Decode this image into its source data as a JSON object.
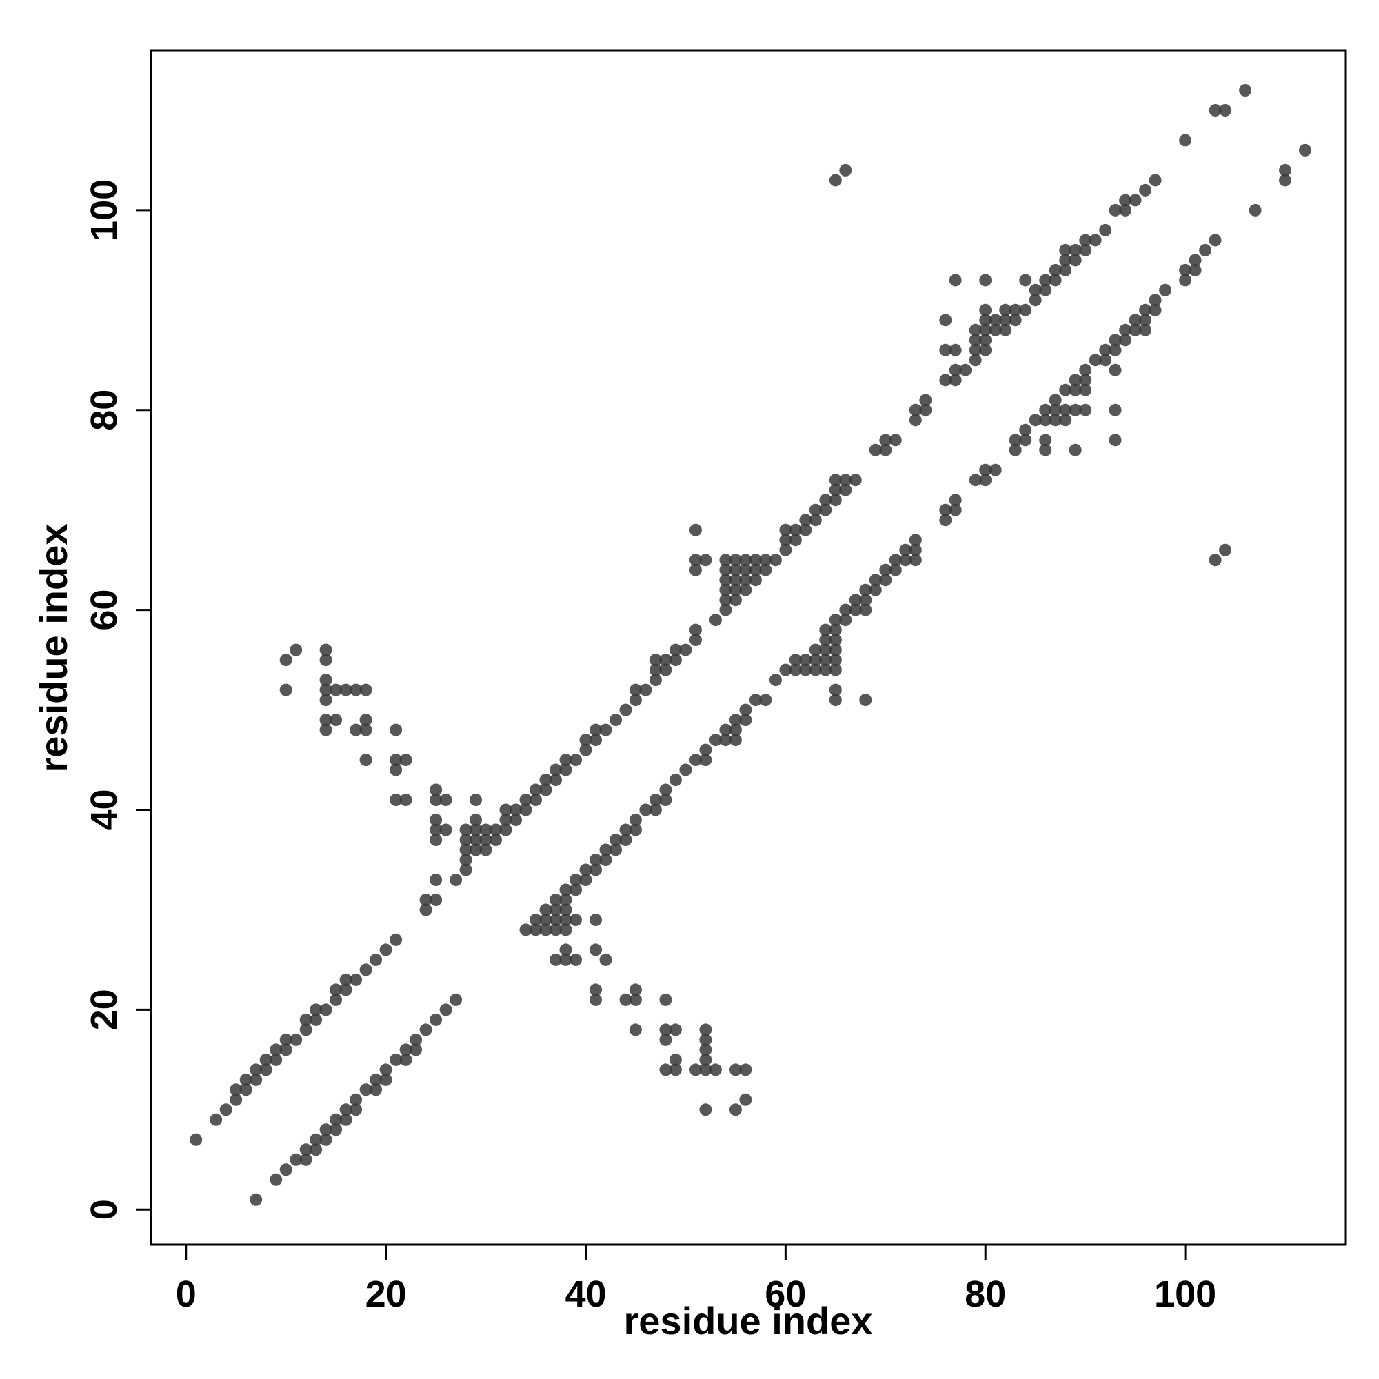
{
  "chart_data": {
    "type": "scatter",
    "title": "",
    "xlabel": "residue index",
    "ylabel": "residue index",
    "xlim": [
      -3.5,
      116
    ],
    "ylim": [
      -3.5,
      116
    ],
    "xticks": [
      0,
      20,
      40,
      60,
      80,
      100
    ],
    "yticks": [
      0,
      20,
      40,
      60,
      80,
      100
    ],
    "grid": false,
    "legend": "none",
    "point_color": "#3a3a3a",
    "point_opacity": 0.85,
    "points": [
      [
        1,
        7
      ],
      [
        3,
        9
      ],
      [
        4,
        10
      ],
      [
        5,
        11
      ],
      [
        5,
        12
      ],
      [
        6,
        12
      ],
      [
        6,
        13
      ],
      [
        7,
        13
      ],
      [
        7,
        14
      ],
      [
        8,
        14
      ],
      [
        8,
        15
      ],
      [
        9,
        15
      ],
      [
        9,
        16
      ],
      [
        10,
        16
      ],
      [
        10,
        17
      ],
      [
        11,
        17
      ],
      [
        12,
        18
      ],
      [
        12,
        19
      ],
      [
        13,
        19
      ],
      [
        13,
        20
      ],
      [
        14,
        20
      ],
      [
        15,
        21
      ],
      [
        15,
        22
      ],
      [
        16,
        22
      ],
      [
        16,
        23
      ],
      [
        17,
        23
      ],
      [
        18,
        24
      ],
      [
        19,
        25
      ],
      [
        20,
        26
      ],
      [
        21,
        27
      ],
      [
        22,
        15
      ],
      [
        23,
        16
      ],
      [
        23,
        17
      ],
      [
        24,
        18
      ],
      [
        25,
        19
      ],
      [
        26,
        20
      ],
      [
        27,
        21
      ],
      [
        7,
        1
      ],
      [
        9,
        3
      ],
      [
        10,
        4
      ],
      [
        11,
        5
      ],
      [
        12,
        5
      ],
      [
        12,
        6
      ],
      [
        13,
        6
      ],
      [
        13,
        7
      ],
      [
        14,
        7
      ],
      [
        14,
        8
      ],
      [
        15,
        8
      ],
      [
        15,
        9
      ],
      [
        16,
        9
      ],
      [
        16,
        10
      ],
      [
        17,
        10
      ],
      [
        17,
        11
      ],
      [
        18,
        12
      ],
      [
        19,
        12
      ],
      [
        19,
        13
      ],
      [
        20,
        13
      ],
      [
        20,
        14
      ],
      [
        21,
        15
      ],
      [
        22,
        16
      ],
      [
        10,
        52
      ],
      [
        10,
        55
      ],
      [
        11,
        56
      ],
      [
        14,
        56
      ],
      [
        14,
        55
      ],
      [
        14,
        53
      ],
      [
        14,
        52
      ],
      [
        14,
        51
      ],
      [
        14,
        49
      ],
      [
        14,
        48
      ],
      [
        15,
        52
      ],
      [
        15,
        49
      ],
      [
        16,
        52
      ],
      [
        17,
        52
      ],
      [
        17,
        48
      ],
      [
        18,
        52
      ],
      [
        18,
        49
      ],
      [
        18,
        48
      ],
      [
        18,
        45
      ],
      [
        21,
        48
      ],
      [
        21,
        45
      ],
      [
        21,
        44
      ],
      [
        21,
        41
      ],
      [
        22,
        45
      ],
      [
        22,
        41
      ],
      [
        24,
        30
      ],
      [
        24,
        31
      ],
      [
        25,
        31
      ],
      [
        25,
        33
      ],
      [
        25,
        37
      ],
      [
        25,
        38
      ],
      [
        25,
        39
      ],
      [
        25,
        41
      ],
      [
        25,
        42
      ],
      [
        26,
        38
      ],
      [
        26,
        41
      ],
      [
        27,
        33
      ],
      [
        28,
        34
      ],
      [
        28,
        35
      ],
      [
        28,
        36
      ],
      [
        28,
        37
      ],
      [
        28,
        38
      ],
      [
        29,
        36
      ],
      [
        29,
        37
      ],
      [
        29,
        38
      ],
      [
        29,
        39
      ],
      [
        29,
        41
      ],
      [
        30,
        36
      ],
      [
        30,
        37
      ],
      [
        30,
        38
      ],
      [
        31,
        37
      ],
      [
        31,
        38
      ],
      [
        32,
        38
      ],
      [
        32,
        39
      ],
      [
        32,
        40
      ],
      [
        33,
        39
      ],
      [
        33,
        40
      ],
      [
        34,
        40
      ],
      [
        34,
        41
      ],
      [
        35,
        41
      ],
      [
        35,
        42
      ],
      [
        36,
        42
      ],
      [
        36,
        43
      ],
      [
        37,
        43
      ],
      [
        37,
        44
      ],
      [
        38,
        44
      ],
      [
        38,
        45
      ],
      [
        39,
        45
      ],
      [
        40,
        46
      ],
      [
        40,
        47
      ],
      [
        41,
        47
      ],
      [
        41,
        48
      ],
      [
        42,
        48
      ],
      [
        43,
        49
      ],
      [
        44,
        50
      ],
      [
        45,
        51
      ],
      [
        45,
        52
      ],
      [
        46,
        52
      ],
      [
        47,
        53
      ],
      [
        47,
        54
      ],
      [
        47,
        55
      ],
      [
        48,
        54
      ],
      [
        48,
        55
      ],
      [
        49,
        55
      ],
      [
        49,
        56
      ],
      [
        50,
        56
      ],
      [
        51,
        57
      ],
      [
        51,
        58
      ],
      [
        51,
        64
      ],
      [
        51,
        65
      ],
      [
        51,
        68
      ],
      [
        52,
        65
      ],
      [
        53,
        59
      ],
      [
        54,
        60
      ],
      [
        54,
        61
      ],
      [
        54,
        62
      ],
      [
        54,
        63
      ],
      [
        54,
        64
      ],
      [
        54,
        65
      ],
      [
        55,
        61
      ],
      [
        55,
        62
      ],
      [
        55,
        63
      ],
      [
        55,
        64
      ],
      [
        55,
        65
      ],
      [
        56,
        62
      ],
      [
        56,
        63
      ],
      [
        56,
        64
      ],
      [
        56,
        65
      ],
      [
        57,
        63
      ],
      [
        57,
        64
      ],
      [
        57,
        65
      ],
      [
        58,
        64
      ],
      [
        58,
        65
      ],
      [
        59,
        65
      ],
      [
        60,
        66
      ],
      [
        60,
        67
      ],
      [
        60,
        68
      ],
      [
        61,
        67
      ],
      [
        61,
        68
      ],
      [
        62,
        68
      ],
      [
        62,
        69
      ],
      [
        63,
        69
      ],
      [
        63,
        70
      ],
      [
        64,
        70
      ],
      [
        64,
        71
      ],
      [
        65,
        71
      ],
      [
        65,
        72
      ],
      [
        65,
        73
      ],
      [
        66,
        72
      ],
      [
        66,
        73
      ],
      [
        67,
        73
      ],
      [
        65,
        103
      ],
      [
        66,
        104
      ],
      [
        69,
        76
      ],
      [
        70,
        76
      ],
      [
        70,
        77
      ],
      [
        71,
        77
      ],
      [
        73,
        79
      ],
      [
        73,
        80
      ],
      [
        74,
        80
      ],
      [
        74,
        81
      ],
      [
        76,
        83
      ],
      [
        76,
        86
      ],
      [
        76,
        89
      ],
      [
        77,
        83
      ],
      [
        77,
        84
      ],
      [
        77,
        86
      ],
      [
        77,
        93
      ],
      [
        78,
        84
      ],
      [
        79,
        85
      ],
      [
        79,
        86
      ],
      [
        79,
        87
      ],
      [
        79,
        88
      ],
      [
        80,
        86
      ],
      [
        80,
        87
      ],
      [
        80,
        88
      ],
      [
        80,
        89
      ],
      [
        80,
        90
      ],
      [
        80,
        93
      ],
      [
        81,
        88
      ],
      [
        81,
        89
      ],
      [
        82,
        88
      ],
      [
        82,
        89
      ],
      [
        82,
        90
      ],
      [
        83,
        89
      ],
      [
        83,
        90
      ],
      [
        84,
        90
      ],
      [
        84,
        93
      ],
      [
        85,
        91
      ],
      [
        85,
        92
      ],
      [
        86,
        92
      ],
      [
        86,
        93
      ],
      [
        87,
        93
      ],
      [
        87,
        94
      ],
      [
        88,
        94
      ],
      [
        88,
        95
      ],
      [
        88,
        96
      ],
      [
        89,
        95
      ],
      [
        89,
        96
      ],
      [
        90,
        96
      ],
      [
        90,
        97
      ],
      [
        91,
        97
      ],
      [
        92,
        98
      ],
      [
        93,
        100
      ],
      [
        94,
        100
      ],
      [
        94,
        101
      ],
      [
        95,
        101
      ],
      [
        96,
        102
      ],
      [
        97,
        103
      ],
      [
        100,
        107
      ],
      [
        103,
        110
      ],
      [
        104,
        110
      ],
      [
        106,
        112
      ],
      [
        34,
        28
      ],
      [
        35,
        28
      ],
      [
        35,
        29
      ],
      [
        36,
        28
      ],
      [
        36,
        29
      ],
      [
        36,
        30
      ],
      [
        37,
        25
      ],
      [
        37,
        28
      ],
      [
        37,
        29
      ],
      [
        37,
        30
      ],
      [
        37,
        31
      ],
      [
        38,
        25
      ],
      [
        38,
        26
      ],
      [
        38,
        28
      ],
      [
        38,
        29
      ],
      [
        38,
        30
      ],
      [
        38,
        31
      ],
      [
        38,
        32
      ],
      [
        39,
        25
      ],
      [
        39,
        29
      ],
      [
        39,
        32
      ],
      [
        39,
        33
      ],
      [
        40,
        33
      ],
      [
        40,
        34
      ],
      [
        41,
        21
      ],
      [
        41,
        22
      ],
      [
        41,
        26
      ],
      [
        41,
        29
      ],
      [
        41,
        34
      ],
      [
        41,
        35
      ],
      [
        42,
        25
      ],
      [
        42,
        35
      ],
      [
        42,
        36
      ],
      [
        43,
        36
      ],
      [
        43,
        37
      ],
      [
        44,
        21
      ],
      [
        44,
        37
      ],
      [
        44,
        38
      ],
      [
        45,
        18
      ],
      [
        45,
        21
      ],
      [
        45,
        22
      ],
      [
        45,
        38
      ],
      [
        45,
        39
      ],
      [
        46,
        40
      ],
      [
        47,
        40
      ],
      [
        47,
        41
      ],
      [
        48,
        14
      ],
      [
        48,
        17
      ],
      [
        48,
        18
      ],
      [
        48,
        21
      ],
      [
        48,
        41
      ],
      [
        48,
        42
      ],
      [
        49,
        14
      ],
      [
        49,
        15
      ],
      [
        49,
        18
      ],
      [
        49,
        43
      ],
      [
        50,
        44
      ],
      [
        51,
        14
      ],
      [
        51,
        45
      ],
      [
        52,
        10
      ],
      [
        52,
        14
      ],
      [
        52,
        15
      ],
      [
        52,
        16
      ],
      [
        52,
        17
      ],
      [
        52,
        18
      ],
      [
        52,
        45
      ],
      [
        52,
        46
      ],
      [
        53,
        14
      ],
      [
        53,
        47
      ],
      [
        54,
        47
      ],
      [
        54,
        48
      ],
      [
        55,
        10
      ],
      [
        55,
        14
      ],
      [
        55,
        47
      ],
      [
        55,
        48
      ],
      [
        55,
        49
      ],
      [
        56,
        11
      ],
      [
        56,
        14
      ],
      [
        56,
        49
      ],
      [
        56,
        50
      ],
      [
        57,
        51
      ],
      [
        58,
        51
      ],
      [
        59,
        53
      ],
      [
        60,
        54
      ],
      [
        61,
        54
      ],
      [
        61,
        55
      ],
      [
        62,
        54
      ],
      [
        62,
        55
      ],
      [
        63,
        54
      ],
      [
        63,
        55
      ],
      [
        63,
        56
      ],
      [
        64,
        54
      ],
      [
        64,
        55
      ],
      [
        64,
        56
      ],
      [
        64,
        57
      ],
      [
        64,
        58
      ],
      [
        65,
        51
      ],
      [
        65,
        52
      ],
      [
        65,
        54
      ],
      [
        65,
        55
      ],
      [
        65,
        56
      ],
      [
        65,
        57
      ],
      [
        65,
        58
      ],
      [
        65,
        59
      ],
      [
        66,
        59
      ],
      [
        66,
        60
      ],
      [
        67,
        60
      ],
      [
        67,
        61
      ],
      [
        68,
        51
      ],
      [
        68,
        60
      ],
      [
        68,
        61
      ],
      [
        68,
        62
      ],
      [
        69,
        62
      ],
      [
        69,
        63
      ],
      [
        70,
        63
      ],
      [
        70,
        64
      ],
      [
        71,
        64
      ],
      [
        71,
        65
      ],
      [
        72,
        65
      ],
      [
        72,
        66
      ],
      [
        73,
        65
      ],
      [
        73,
        66
      ],
      [
        73,
        67
      ],
      [
        76,
        69
      ],
      [
        76,
        70
      ],
      [
        77,
        70
      ],
      [
        77,
        71
      ],
      [
        79,
        73
      ],
      [
        80,
        73
      ],
      [
        80,
        74
      ],
      [
        81,
        74
      ],
      [
        83,
        76
      ],
      [
        83,
        77
      ],
      [
        84,
        77
      ],
      [
        84,
        78
      ],
      [
        85,
        79
      ],
      [
        86,
        76
      ],
      [
        86,
        77
      ],
      [
        86,
        79
      ],
      [
        86,
        80
      ],
      [
        87,
        79
      ],
      [
        87,
        80
      ],
      [
        87,
        81
      ],
      [
        88,
        79
      ],
      [
        88,
        80
      ],
      [
        88,
        82
      ],
      [
        89,
        76
      ],
      [
        89,
        80
      ],
      [
        89,
        82
      ],
      [
        89,
        83
      ],
      [
        90,
        80
      ],
      [
        90,
        82
      ],
      [
        90,
        83
      ],
      [
        90,
        84
      ],
      [
        91,
        85
      ],
      [
        92,
        85
      ],
      [
        92,
        86
      ],
      [
        93,
        77
      ],
      [
        93,
        80
      ],
      [
        93,
        84
      ],
      [
        93,
        86
      ],
      [
        93,
        87
      ],
      [
        94,
        87
      ],
      [
        94,
        88
      ],
      [
        95,
        88
      ],
      [
        95,
        89
      ],
      [
        96,
        88
      ],
      [
        96,
        89
      ],
      [
        96,
        90
      ],
      [
        97,
        90
      ],
      [
        97,
        91
      ],
      [
        98,
        92
      ],
      [
        100,
        93
      ],
      [
        100,
        94
      ],
      [
        101,
        94
      ],
      [
        101,
        95
      ],
      [
        102,
        96
      ],
      [
        103,
        97
      ],
      [
        103,
        65
      ],
      [
        104,
        66
      ],
      [
        107,
        100
      ],
      [
        110,
        103
      ],
      [
        110,
        104
      ],
      [
        112,
        106
      ]
    ]
  }
}
